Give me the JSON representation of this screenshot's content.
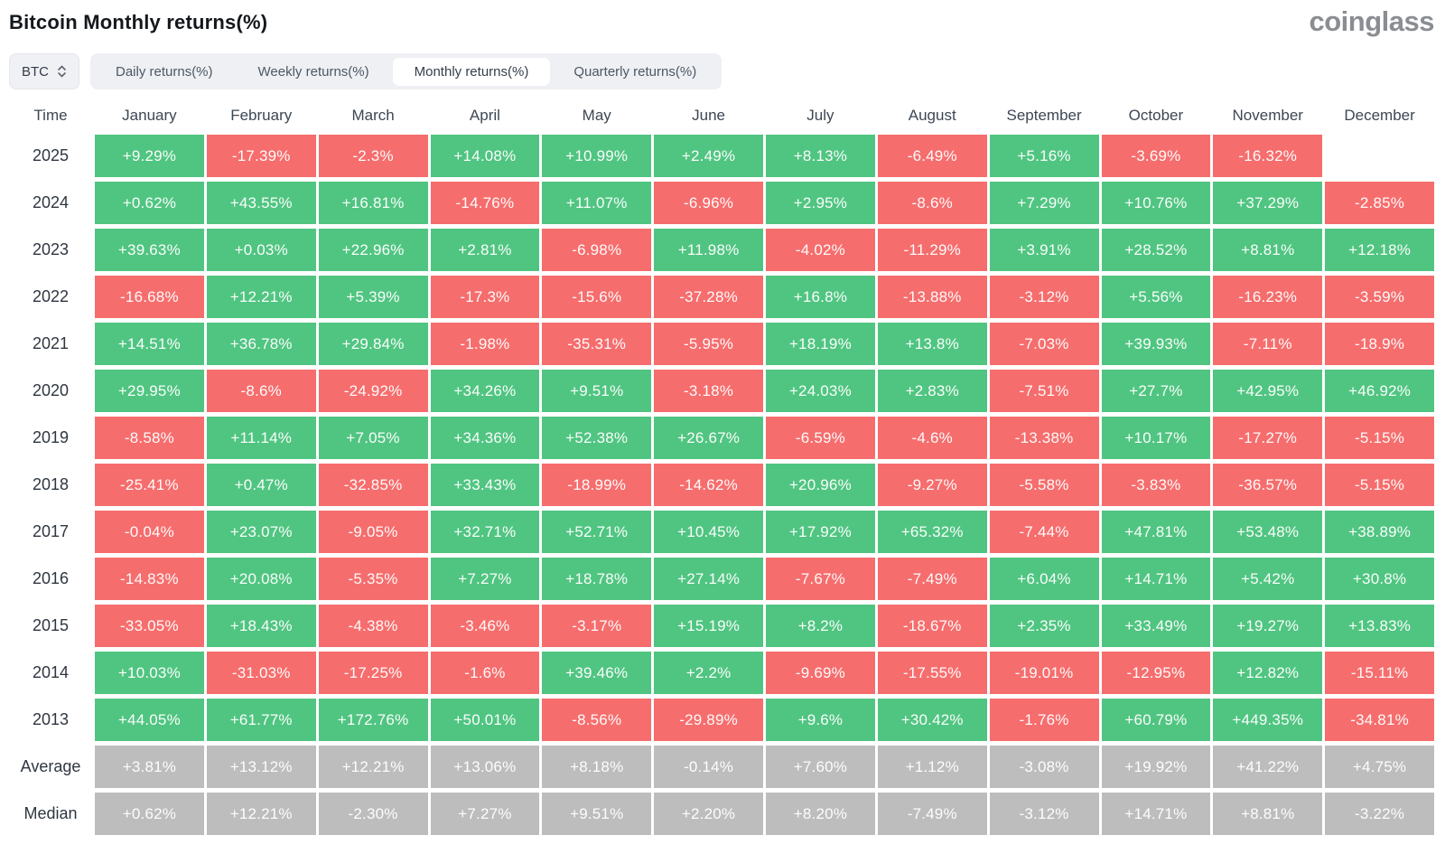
{
  "page": {
    "title": "Bitcoin Monthly returns(%)",
    "logo": "coinglass"
  },
  "toolbar": {
    "symbol_select": {
      "value": "BTC"
    },
    "tabs": [
      {
        "label": "Daily returns(%)",
        "selected": false
      },
      {
        "label": "Weekly returns(%)",
        "selected": false
      },
      {
        "label": "Monthly returns(%)",
        "selected": true
      },
      {
        "label": "Quarterly returns(%)",
        "selected": false
      }
    ]
  },
  "colors": {
    "positive": "#50c581",
    "negative": "#f66d6d",
    "neutral": "#bdbdbd"
  },
  "table": {
    "row_header": "Time"
  },
  "chart_data": {
    "type": "heatmap",
    "title": "Bitcoin Monthly returns(%)",
    "unit": "%",
    "color_rule": "green = positive, red = negative, gray = summary rows (Average/Median)",
    "columns": [
      "January",
      "February",
      "March",
      "April",
      "May",
      "June",
      "July",
      "August",
      "September",
      "October",
      "November",
      "December"
    ],
    "rows": [
      {
        "label": "2025",
        "kind": "year",
        "values": [
          9.29,
          -17.39,
          -2.3,
          14.08,
          10.99,
          2.49,
          8.13,
          -6.49,
          5.16,
          -3.69,
          -16.32,
          null
        ],
        "display": [
          "+9.29%",
          "-17.39%",
          "-2.3%",
          "+14.08%",
          "+10.99%",
          "+2.49%",
          "+8.13%",
          "-6.49%",
          "+5.16%",
          "-3.69%",
          "-16.32%",
          null
        ]
      },
      {
        "label": "2024",
        "kind": "year",
        "values": [
          0.62,
          43.55,
          16.81,
          -14.76,
          11.07,
          -6.96,
          2.95,
          -8.6,
          7.29,
          10.76,
          37.29,
          -2.85
        ],
        "display": [
          "+0.62%",
          "+43.55%",
          "+16.81%",
          "-14.76%",
          "+11.07%",
          "-6.96%",
          "+2.95%",
          "-8.6%",
          "+7.29%",
          "+10.76%",
          "+37.29%",
          "-2.85%"
        ]
      },
      {
        "label": "2023",
        "kind": "year",
        "values": [
          39.63,
          0.03,
          22.96,
          2.81,
          -6.98,
          11.98,
          -4.02,
          -11.29,
          3.91,
          28.52,
          8.81,
          12.18
        ],
        "display": [
          "+39.63%",
          "+0.03%",
          "+22.96%",
          "+2.81%",
          "-6.98%",
          "+11.98%",
          "-4.02%",
          "-11.29%",
          "+3.91%",
          "+28.52%",
          "+8.81%",
          "+12.18%"
        ]
      },
      {
        "label": "2022",
        "kind": "year",
        "values": [
          -16.68,
          12.21,
          5.39,
          -17.3,
          -15.6,
          -37.28,
          16.8,
          -13.88,
          -3.12,
          5.56,
          -16.23,
          -3.59
        ],
        "display": [
          "-16.68%",
          "+12.21%",
          "+5.39%",
          "-17.3%",
          "-15.6%",
          "-37.28%",
          "+16.8%",
          "-13.88%",
          "-3.12%",
          "+5.56%",
          "-16.23%",
          "-3.59%"
        ]
      },
      {
        "label": "2021",
        "kind": "year",
        "values": [
          14.51,
          36.78,
          29.84,
          -1.98,
          -35.31,
          -5.95,
          18.19,
          13.8,
          -7.03,
          39.93,
          -7.11,
          -18.9
        ],
        "display": [
          "+14.51%",
          "+36.78%",
          "+29.84%",
          "-1.98%",
          "-35.31%",
          "-5.95%",
          "+18.19%",
          "+13.8%",
          "-7.03%",
          "+39.93%",
          "-7.11%",
          "-18.9%"
        ]
      },
      {
        "label": "2020",
        "kind": "year",
        "values": [
          29.95,
          -8.6,
          -24.92,
          34.26,
          9.51,
          -3.18,
          24.03,
          2.83,
          -7.51,
          27.7,
          42.95,
          46.92
        ],
        "display": [
          "+29.95%",
          "-8.6%",
          "-24.92%",
          "+34.26%",
          "+9.51%",
          "-3.18%",
          "+24.03%",
          "+2.83%",
          "-7.51%",
          "+27.7%",
          "+42.95%",
          "+46.92%"
        ]
      },
      {
        "label": "2019",
        "kind": "year",
        "values": [
          -8.58,
          11.14,
          7.05,
          34.36,
          52.38,
          26.67,
          -6.59,
          -4.6,
          -13.38,
          10.17,
          -17.27,
          -5.15
        ],
        "display": [
          "-8.58%",
          "+11.14%",
          "+7.05%",
          "+34.36%",
          "+52.38%",
          "+26.67%",
          "-6.59%",
          "-4.6%",
          "-13.38%",
          "+10.17%",
          "-17.27%",
          "-5.15%"
        ]
      },
      {
        "label": "2018",
        "kind": "year",
        "values": [
          -25.41,
          0.47,
          -32.85,
          33.43,
          -18.99,
          -14.62,
          20.96,
          -9.27,
          -5.58,
          -3.83,
          -36.57,
          -5.15
        ],
        "display": [
          "-25.41%",
          "+0.47%",
          "-32.85%",
          "+33.43%",
          "-18.99%",
          "-14.62%",
          "+20.96%",
          "-9.27%",
          "-5.58%",
          "-3.83%",
          "-36.57%",
          "-5.15%"
        ]
      },
      {
        "label": "2017",
        "kind": "year",
        "values": [
          -0.04,
          23.07,
          -9.05,
          32.71,
          52.71,
          10.45,
          17.92,
          65.32,
          -7.44,
          47.81,
          53.48,
          38.89
        ],
        "display": [
          "-0.04%",
          "+23.07%",
          "-9.05%",
          "+32.71%",
          "+52.71%",
          "+10.45%",
          "+17.92%",
          "+65.32%",
          "-7.44%",
          "+47.81%",
          "+53.48%",
          "+38.89%"
        ]
      },
      {
        "label": "2016",
        "kind": "year",
        "values": [
          -14.83,
          20.08,
          -5.35,
          7.27,
          18.78,
          27.14,
          -7.67,
          -7.49,
          6.04,
          14.71,
          5.42,
          30.8
        ],
        "display": [
          "-14.83%",
          "+20.08%",
          "-5.35%",
          "+7.27%",
          "+18.78%",
          "+27.14%",
          "-7.67%",
          "-7.49%",
          "+6.04%",
          "+14.71%",
          "+5.42%",
          "+30.8%"
        ]
      },
      {
        "label": "2015",
        "kind": "year",
        "values": [
          -33.05,
          18.43,
          -4.38,
          -3.46,
          -3.17,
          15.19,
          8.2,
          -18.67,
          2.35,
          33.49,
          19.27,
          13.83
        ],
        "display": [
          "-33.05%",
          "+18.43%",
          "-4.38%",
          "-3.46%",
          "-3.17%",
          "+15.19%",
          "+8.2%",
          "-18.67%",
          "+2.35%",
          "+33.49%",
          "+19.27%",
          "+13.83%"
        ]
      },
      {
        "label": "2014",
        "kind": "year",
        "values": [
          10.03,
          -31.03,
          -17.25,
          -1.6,
          39.46,
          2.2,
          -9.69,
          -17.55,
          -19.01,
          -12.95,
          12.82,
          -15.11
        ],
        "display": [
          "+10.03%",
          "-31.03%",
          "-17.25%",
          "-1.6%",
          "+39.46%",
          "+2.2%",
          "-9.69%",
          "-17.55%",
          "-19.01%",
          "-12.95%",
          "+12.82%",
          "-15.11%"
        ]
      },
      {
        "label": "2013",
        "kind": "year",
        "values": [
          44.05,
          61.77,
          172.76,
          50.01,
          -8.56,
          -29.89,
          9.6,
          30.42,
          -1.76,
          60.79,
          449.35,
          -34.81
        ],
        "display": [
          "+44.05%",
          "+61.77%",
          "+172.76%",
          "+50.01%",
          "-8.56%",
          "-29.89%",
          "+9.6%",
          "+30.42%",
          "-1.76%",
          "+60.79%",
          "+449.35%",
          "-34.81%"
        ]
      },
      {
        "label": "Average",
        "kind": "summary",
        "values": [
          3.81,
          13.12,
          12.21,
          13.06,
          8.18,
          -0.14,
          7.6,
          1.12,
          -3.08,
          19.92,
          41.22,
          4.75
        ],
        "display": [
          "+3.81%",
          "+13.12%",
          "+12.21%",
          "+13.06%",
          "+8.18%",
          "-0.14%",
          "+7.60%",
          "+1.12%",
          "-3.08%",
          "+19.92%",
          "+41.22%",
          "+4.75%"
        ]
      },
      {
        "label": "Median",
        "kind": "summary",
        "values": [
          0.62,
          12.21,
          -2.3,
          7.27,
          9.51,
          2.2,
          8.2,
          -7.49,
          -3.12,
          14.71,
          8.81,
          -3.22
        ],
        "display": [
          "+0.62%",
          "+12.21%",
          "-2.30%",
          "+7.27%",
          "+9.51%",
          "+2.20%",
          "+8.20%",
          "-7.49%",
          "-3.12%",
          "+14.71%",
          "+8.81%",
          "-3.22%"
        ]
      }
    ]
  }
}
